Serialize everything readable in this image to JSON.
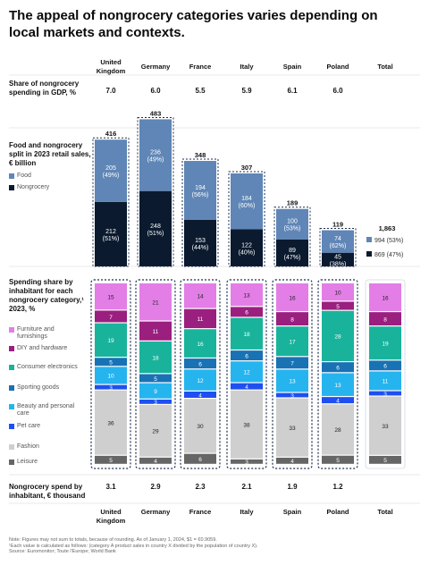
{
  "title": "The appeal of nongrocery categories varies depending on local markets and contexts.",
  "colors": {
    "food": "#5f86b6",
    "nongrocery": "#0b1a2e",
    "furniture": "#e27ee6",
    "diy": "#9b1f7f",
    "consumer_electronics": "#19b39b",
    "sporting_goods": "#1872b4",
    "beauty": "#26b4ee",
    "pet": "#1f4ff0",
    "fashion": "#cfcfcf",
    "leisure": "#666666"
  },
  "labels": {
    "share_gdp": "Share of nongrocery spending in GDP, %",
    "split_title": "Food and nongrocery split in 2023 retail sales, € billion",
    "food": "Food",
    "nongrocery": "Nongrocery",
    "spending_share_title": "Spending share by inhabitant for each nongrocery category,¹ 2023, %",
    "spend_per_inhabitant": "Nongrocery spend by inhabitant, € thousand"
  },
  "chart_data": {
    "type": "bar",
    "categories": [
      "United Kingdom",
      "Germany",
      "France",
      "Italy",
      "Spain",
      "Poland",
      "Total"
    ],
    "share_gdp": [
      "7.0",
      "6.0",
      "5.5",
      "5.9",
      "6.1",
      "6.0",
      ""
    ],
    "retail_split": {
      "totals": [
        "416",
        "483",
        "348",
        "307",
        "189",
        "119"
      ],
      "food": [
        205,
        236,
        194,
        184,
        100,
        74
      ],
      "food_labels": [
        "205",
        "236",
        "194",
        "184",
        "100",
        "74"
      ],
      "food_pct": [
        "(49%)",
        "(49%)",
        "(56%)",
        "(60%)",
        "(53%)",
        "(62%)"
      ],
      "nongrocery": [
        212,
        248,
        153,
        122,
        89,
        45
      ],
      "nongrocery_labels": [
        "212",
        "248",
        "153",
        "122",
        "89",
        "45"
      ],
      "nongrocery_pct": [
        "(51%)",
        "(51%)",
        "(44%)",
        "(40%)",
        "(47%)",
        "(38%)"
      ],
      "total_all": "1,863",
      "total_food": "994 (53%)",
      "total_nongrocery": "869 (47%)"
    },
    "spending_categories": [
      {
        "key": "furniture",
        "name": "Furniture and furnishings",
        "values": [
          15,
          21,
          14,
          13,
          16,
          10,
          16
        ]
      },
      {
        "key": "diy",
        "name": "DIY and hardware",
        "values": [
          7,
          11,
          11,
          6,
          8,
          5,
          8
        ]
      },
      {
        "key": "consumer_electronics",
        "name": "Consumer electronics",
        "values": [
          19,
          18,
          16,
          18,
          17,
          28,
          19
        ]
      },
      {
        "key": "sporting_goods",
        "name": "Sporting goods",
        "values": [
          5,
          5,
          6,
          6,
          7,
          6,
          6
        ]
      },
      {
        "key": "beauty",
        "name": "Beauty and personal care",
        "values": [
          10,
          9,
          12,
          12,
          13,
          13,
          11
        ]
      },
      {
        "key": "pet",
        "name": "Pet care",
        "values": [
          3,
          3,
          4,
          4,
          3,
          4,
          3
        ]
      },
      {
        "key": "fashion",
        "name": "Fashion",
        "values": [
          36,
          29,
          30,
          38,
          33,
          28,
          33
        ]
      },
      {
        "key": "leisure",
        "name": "Leisure",
        "values": [
          5,
          4,
          6,
          3,
          4,
          5,
          5
        ]
      }
    ],
    "spend_per_inhabitant": [
      "3.1",
      "2.9",
      "2.3",
      "2.1",
      "1.9",
      "1.2",
      ""
    ]
  },
  "notes": {
    "note": "Note: Figures may not sum to totals, because of rounding. As of January 1, 2024, $1 = €0.9059.",
    "footnote": "¹Each value is calculated as follows: (category A product sales in country X divided by the population of country X).",
    "source": "Source: Euromonitor; Toute l'Europe; World Bank"
  }
}
